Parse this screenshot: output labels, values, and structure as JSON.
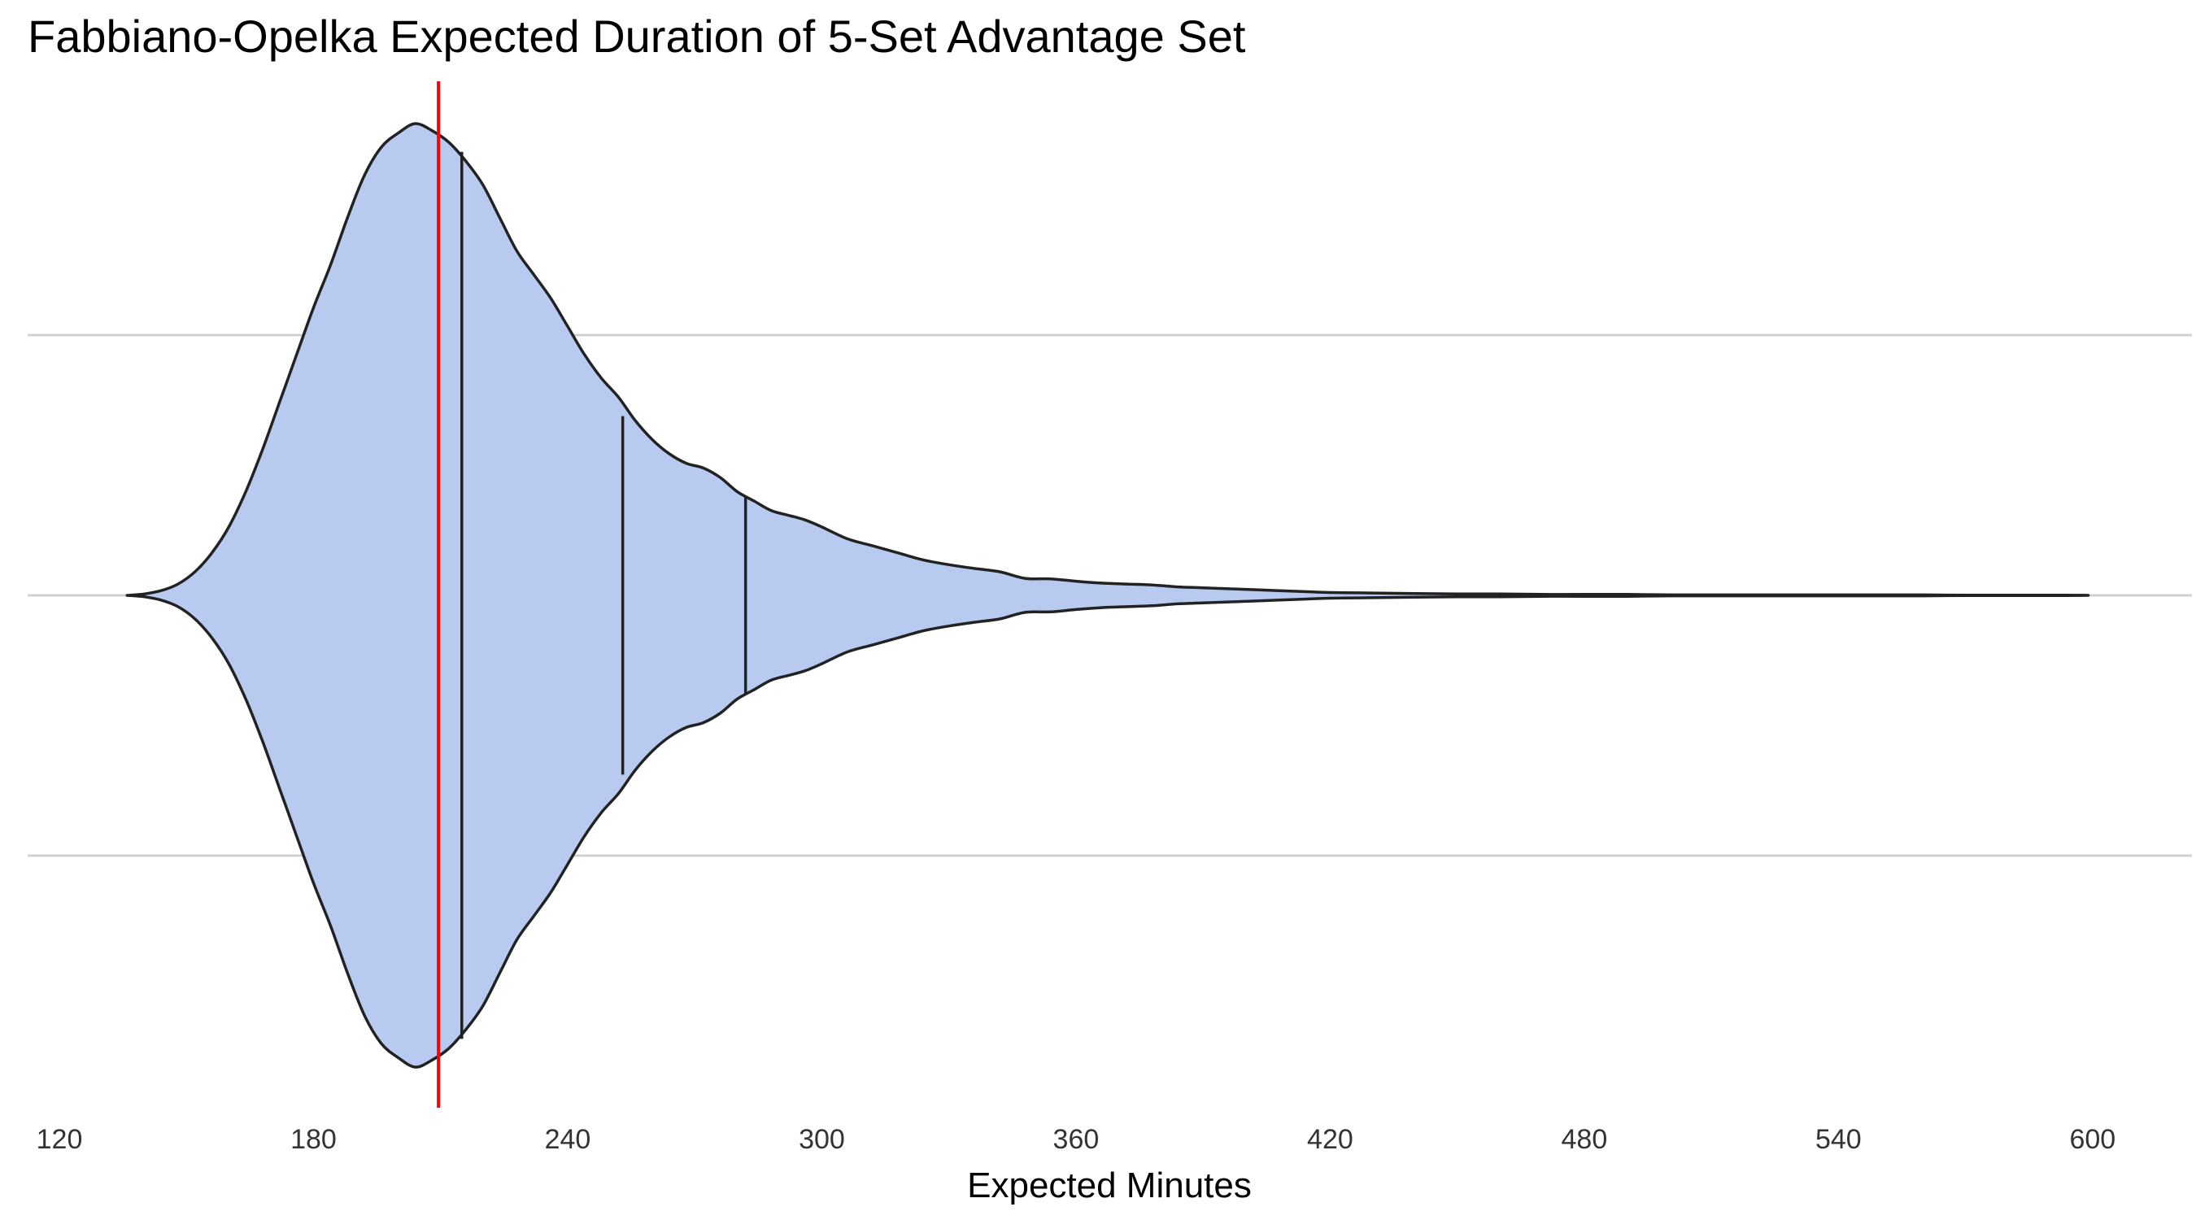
{
  "chart_data": {
    "type": "violin",
    "title": "Fabbiano-Opelka Expected Duration of 5-Set Advantage Set",
    "xlabel": "Expected Minutes",
    "ylabel": "",
    "xlim": [
      117,
      630
    ],
    "x_ticks": [
      120,
      180,
      240,
      300,
      360,
      420,
      480,
      540,
      600
    ],
    "x_tick_labels": [
      "120",
      "180",
      "240",
      "300",
      "360",
      "420",
      "480",
      "540",
      "600"
    ],
    "grid": {
      "horizontal": true,
      "vertical": false
    },
    "density": {
      "x": [
        136,
        140,
        144,
        148,
        152,
        156,
        160,
        164,
        168,
        172,
        176,
        180,
        184,
        188,
        192,
        196,
        200,
        204,
        208,
        212,
        216,
        220,
        224,
        228,
        232,
        236,
        240,
        244,
        248,
        252,
        256,
        260,
        264,
        268,
        272,
        276,
        280,
        284,
        288,
        292,
        296,
        300,
        306,
        312,
        318,
        324,
        330,
        336,
        342,
        348,
        354,
        360,
        366,
        372,
        378,
        384,
        390,
        396,
        402,
        408,
        414,
        420,
        430,
        440,
        450,
        460,
        470,
        480,
        490,
        500,
        510,
        520,
        530,
        540,
        550,
        560,
        570,
        580,
        590,
        599
      ],
      "half_width": [
        0.0,
        0.003,
        0.01,
        0.024,
        0.05,
        0.09,
        0.145,
        0.22,
        0.31,
        0.41,
        0.51,
        0.61,
        0.7,
        0.8,
        0.89,
        0.95,
        0.98,
        1.0,
        0.985,
        0.96,
        0.92,
        0.87,
        0.8,
        0.73,
        0.68,
        0.63,
        0.57,
        0.51,
        0.46,
        0.42,
        0.37,
        0.33,
        0.3,
        0.28,
        0.27,
        0.25,
        0.22,
        0.2,
        0.18,
        0.17,
        0.16,
        0.145,
        0.12,
        0.105,
        0.09,
        0.075,
        0.065,
        0.057,
        0.05,
        0.036,
        0.035,
        0.03,
        0.026,
        0.024,
        0.022,
        0.018,
        0.016,
        0.014,
        0.012,
        0.01,
        0.008,
        0.006,
        0.005,
        0.004,
        0.003,
        0.003,
        0.002,
        0.002,
        0.002,
        0.001,
        0.001,
        0.001,
        0.001,
        0.001,
        0.001,
        0.001,
        0.0005,
        0.0005,
        0.0005,
        0.0
      ]
    },
    "quantiles": [
      {
        "x": 215,
        "half_width": 0.94
      },
      {
        "x": 253,
        "half_width": 0.38
      },
      {
        "x": 282,
        "half_width": 0.21
      }
    ],
    "reference_line": {
      "x": 209.5,
      "color": "#ff0000"
    },
    "fill_color": "#b8caf0",
    "outline_color": "#222222"
  }
}
